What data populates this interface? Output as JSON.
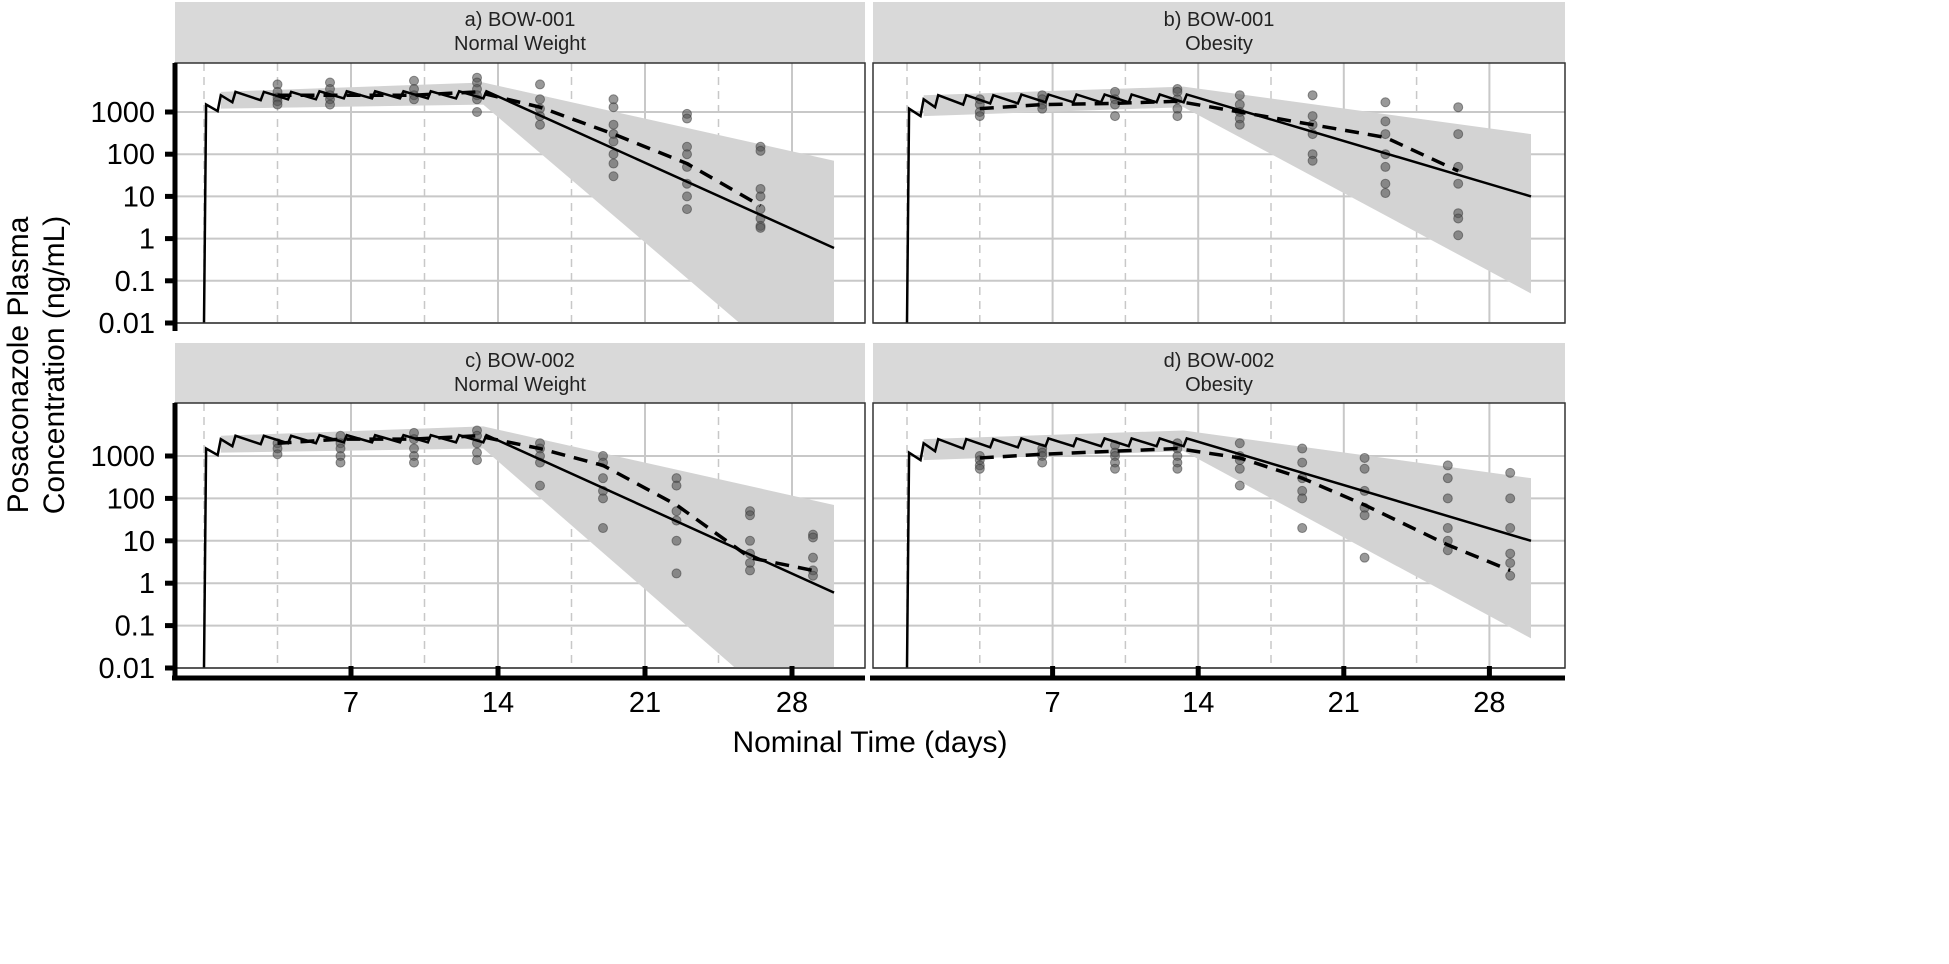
{
  "chart_data": {
    "type": "line",
    "xlabel": "Nominal Time (days)",
    "ylabel_lines": [
      "Posaconazole Plasma",
      "Concentration (ng/mL)"
    ],
    "y_scale": "log",
    "ylim": [
      0.01,
      15000
    ],
    "xlim": [
      -1.4,
      31.5
    ],
    "x_ticks": [
      7,
      14,
      21,
      28
    ],
    "y_ticks": [
      0.01,
      0.1,
      1,
      10,
      100,
      1000
    ],
    "y_tick_labels": [
      "0.01",
      "0.1",
      "1",
      "10",
      "100",
      "1000"
    ],
    "x_tick_labels": [
      "7",
      "14",
      "21",
      "28"
    ],
    "grid": true,
    "colors": {
      "strip": "#d9d9d9",
      "ribbon": "#d3d3d3",
      "points": "#555555",
      "lines": "#000000",
      "grid": "#c8c8c8"
    },
    "panels": [
      {
        "title_lines": [
          "a) BOW-001",
          "Normal Weight"
        ],
        "model_median": [
          [
            0,
            0.01
          ],
          [
            0.1,
            1500
          ],
          [
            0.65,
            1050
          ],
          [
            0.8,
            2500
          ],
          [
            1.35,
            1700
          ],
          [
            1.5,
            3000
          ],
          [
            2.7,
            1900
          ],
          [
            2.85,
            3000
          ],
          [
            4.0,
            2000
          ],
          [
            4.15,
            3000
          ],
          [
            5.33,
            2000
          ],
          [
            5.5,
            3100
          ],
          [
            6.66,
            2100
          ],
          [
            6.8,
            3100
          ],
          [
            8.0,
            2100
          ],
          [
            8.15,
            3100
          ],
          [
            9.33,
            2100
          ],
          [
            9.5,
            3100
          ],
          [
            10.66,
            2100
          ],
          [
            10.8,
            3100
          ],
          [
            12.0,
            2100
          ],
          [
            12.15,
            3100
          ],
          [
            13.3,
            2100
          ],
          [
            13.45,
            3100
          ],
          [
            30,
            0.6
          ]
        ],
        "pi_upper": [
          [
            0.8,
            3000
          ],
          [
            13.3,
            5000
          ],
          [
            30,
            70
          ]
        ],
        "pi_lower": [
          [
            0.8,
            1200
          ],
          [
            13.3,
            1500
          ],
          [
            25.5,
            0.01
          ],
          [
            30,
            0.01
          ]
        ],
        "observed_median": [
          [
            3.5,
            2500
          ],
          [
            6,
            2500
          ],
          [
            10,
            2500
          ],
          [
            13,
            3000
          ],
          [
            16,
            1300
          ],
          [
            19.5,
            300
          ],
          [
            23,
            60
          ],
          [
            26.5,
            6
          ]
        ],
        "observed": [
          [
            3.5,
            [
              4500,
              3000,
              2200,
              1800,
              1500
            ]
          ],
          [
            6,
            [
              5000,
              3500,
              2500,
              2000,
              1500
            ]
          ],
          [
            10,
            [
              5500,
              3500,
              2500,
              2000
            ]
          ],
          [
            13,
            [
              6500,
              5000,
              3500,
              2500,
              2000,
              1000
            ]
          ],
          [
            16,
            [
              4500,
              2000,
              1200,
              800,
              500
            ]
          ],
          [
            19.5,
            [
              2000,
              1300,
              500,
              300,
              200,
              100,
              60,
              30
            ]
          ],
          [
            23,
            [
              900,
              700,
              150,
              100,
              50,
              20,
              10,
              5
            ]
          ],
          [
            26.5,
            [
              150,
              120,
              15,
              10,
              5,
              3,
              2,
              1.8
            ]
          ]
        ]
      },
      {
        "title_lines": [
          "b) BOW-001",
          "Obesity"
        ],
        "model_median": [
          [
            0,
            0.01
          ],
          [
            0.1,
            1200
          ],
          [
            0.65,
            800
          ],
          [
            0.8,
            2000
          ],
          [
            1.35,
            1300
          ],
          [
            1.5,
            2500
          ],
          [
            2.7,
            1500
          ],
          [
            2.85,
            2500
          ],
          [
            4.0,
            1600
          ],
          [
            4.15,
            2500
          ],
          [
            5.33,
            1600
          ],
          [
            5.5,
            2600
          ],
          [
            6.66,
            1700
          ],
          [
            6.8,
            2600
          ],
          [
            8.0,
            1700
          ],
          [
            8.15,
            2600
          ],
          [
            9.33,
            1700
          ],
          [
            9.5,
            2600
          ],
          [
            10.66,
            1700
          ],
          [
            10.8,
            2600
          ],
          [
            12.0,
            1700
          ],
          [
            12.15,
            2600
          ],
          [
            13.3,
            1700
          ],
          [
            13.45,
            2600
          ],
          [
            30,
            10
          ]
        ],
        "pi_upper": [
          [
            0.8,
            2500
          ],
          [
            13.3,
            4000
          ],
          [
            30,
            300
          ]
        ],
        "pi_lower": [
          [
            0.8,
            800
          ],
          [
            13.3,
            1300
          ],
          [
            30,
            0.05
          ]
        ],
        "observed_median": [
          [
            3.5,
            1200
          ],
          [
            6.5,
            1500
          ],
          [
            10,
            1600
          ],
          [
            13,
            1800
          ],
          [
            16,
            1000
          ],
          [
            19.5,
            500
          ],
          [
            23,
            250
          ],
          [
            26.5,
            40
          ]
        ],
        "observed": [
          [
            3.5,
            [
              2000,
              1500,
              1000,
              800
            ]
          ],
          [
            6.5,
            [
              2500,
              2000,
              1500,
              1200
            ]
          ],
          [
            10,
            [
              3000,
              2000,
              1500,
              800
            ]
          ],
          [
            13,
            [
              3500,
              3000,
              2000,
              1200,
              800
            ]
          ],
          [
            16,
            [
              2500,
              1500,
              1000,
              700,
              500
            ]
          ],
          [
            19.5,
            [
              2500,
              800,
              500,
              300,
              100,
              70
            ]
          ],
          [
            23,
            [
              1700,
              600,
              300,
              100,
              50,
              20,
              12
            ]
          ],
          [
            26.5,
            [
              1300,
              300,
              50,
              20,
              4,
              3,
              1.2
            ]
          ]
        ]
      },
      {
        "title_lines": [
          "c) BOW-002",
          "Normal Weight"
        ],
        "model_median": [
          [
            0,
            0.01
          ],
          [
            0.1,
            1500
          ],
          [
            0.65,
            1050
          ],
          [
            0.8,
            2500
          ],
          [
            1.35,
            1700
          ],
          [
            1.5,
            3000
          ],
          [
            2.7,
            1900
          ],
          [
            2.85,
            3000
          ],
          [
            4.0,
            2000
          ],
          [
            4.15,
            3000
          ],
          [
            5.33,
            2000
          ],
          [
            5.5,
            3100
          ],
          [
            6.66,
            2100
          ],
          [
            6.8,
            3100
          ],
          [
            8.0,
            2100
          ],
          [
            8.15,
            3100
          ],
          [
            9.33,
            2100
          ],
          [
            9.5,
            3100
          ],
          [
            10.66,
            2100
          ],
          [
            10.8,
            3100
          ],
          [
            12.0,
            2100
          ],
          [
            12.15,
            3100
          ],
          [
            13.3,
            2100
          ],
          [
            13.45,
            3100
          ],
          [
            30,
            0.6
          ]
        ],
        "pi_upper": [
          [
            0.8,
            3000
          ],
          [
            13.3,
            5000
          ],
          [
            30,
            70
          ]
        ],
        "pi_lower": [
          [
            0.8,
            1200
          ],
          [
            13.3,
            1500
          ],
          [
            25.3,
            0.01
          ],
          [
            30,
            0.01
          ]
        ],
        "observed_median": [
          [
            3.5,
            2000
          ],
          [
            6.5,
            2500
          ],
          [
            10,
            2500
          ],
          [
            13,
            3000
          ],
          [
            16,
            1500
          ],
          [
            19,
            600
          ],
          [
            22.5,
            70
          ],
          [
            26,
            4
          ],
          [
            29,
            2
          ]
        ],
        "observed": [
          [
            3.5,
            [
              2000,
              1500,
              1100
            ]
          ],
          [
            6.5,
            [
              3000,
              2000,
              1500,
              1000,
              700
            ]
          ],
          [
            10,
            [
              3500,
              2500,
              1500,
              1000,
              700
            ]
          ],
          [
            13,
            [
              4000,
              3000,
              2000,
              1200,
              800
            ]
          ],
          [
            16,
            [
              2000,
              1500,
              1000,
              700,
              200
            ]
          ],
          [
            19,
            [
              1000,
              700,
              300,
              150,
              100,
              20
            ]
          ],
          [
            22.5,
            [
              300,
              200,
              50,
              30,
              10,
              1.7
            ]
          ],
          [
            26,
            [
              50,
              40,
              10,
              5,
              3,
              2
            ]
          ],
          [
            29,
            [
              14,
              12,
              4,
              2,
              1.5
            ]
          ]
        ]
      },
      {
        "title_lines": [
          "d) BOW-002",
          "Obesity"
        ],
        "model_median": [
          [
            0,
            0.01
          ],
          [
            0.1,
            1200
          ],
          [
            0.65,
            800
          ],
          [
            0.8,
            2000
          ],
          [
            1.35,
            1300
          ],
          [
            1.5,
            2500
          ],
          [
            2.7,
            1500
          ],
          [
            2.85,
            2500
          ],
          [
            4.0,
            1600
          ],
          [
            4.15,
            2500
          ],
          [
            5.33,
            1600
          ],
          [
            5.5,
            2600
          ],
          [
            6.66,
            1700
          ],
          [
            6.8,
            2600
          ],
          [
            8.0,
            1700
          ],
          [
            8.15,
            2600
          ],
          [
            9.33,
            1700
          ],
          [
            9.5,
            2600
          ],
          [
            10.66,
            1700
          ],
          [
            10.8,
            2600
          ],
          [
            12.0,
            1700
          ],
          [
            12.15,
            2600
          ],
          [
            13.3,
            1700
          ],
          [
            13.45,
            2600
          ],
          [
            30,
            10
          ]
        ],
        "pi_upper": [
          [
            0.8,
            2500
          ],
          [
            13.3,
            4000
          ],
          [
            30,
            300
          ]
        ],
        "pi_lower": [
          [
            0.8,
            800
          ],
          [
            13.3,
            1300
          ],
          [
            30,
            0.05
          ]
        ],
        "observed_median": [
          [
            3.5,
            900
          ],
          [
            6.5,
            1100
          ],
          [
            10,
            1300
          ],
          [
            13,
            1500
          ],
          [
            16,
            900
          ],
          [
            19,
            300
          ],
          [
            22,
            70
          ],
          [
            26,
            8
          ],
          [
            29,
            2
          ]
        ],
        "observed": [
          [
            3.5,
            [
              1000,
              800,
              600,
              500
            ]
          ],
          [
            6.5,
            [
              1500,
              1200,
              1000,
              700
            ]
          ],
          [
            10,
            [
              1800,
              1200,
              1000,
              700,
              500
            ]
          ],
          [
            13,
            [
              2000,
              1500,
              1000,
              700,
              500
            ]
          ],
          [
            16,
            [
              2000,
              1000,
              800,
              500,
              200
            ]
          ],
          [
            19,
            [
              1500,
              700,
              300,
              150,
              100,
              20
            ]
          ],
          [
            22,
            [
              900,
              500,
              150,
              60,
              40,
              4
            ]
          ],
          [
            26,
            [
              600,
              300,
              100,
              20,
              10,
              6
            ]
          ],
          [
            29,
            [
              400,
              100,
              20,
              5,
              3,
              1.5
            ]
          ]
        ]
      }
    ]
  }
}
